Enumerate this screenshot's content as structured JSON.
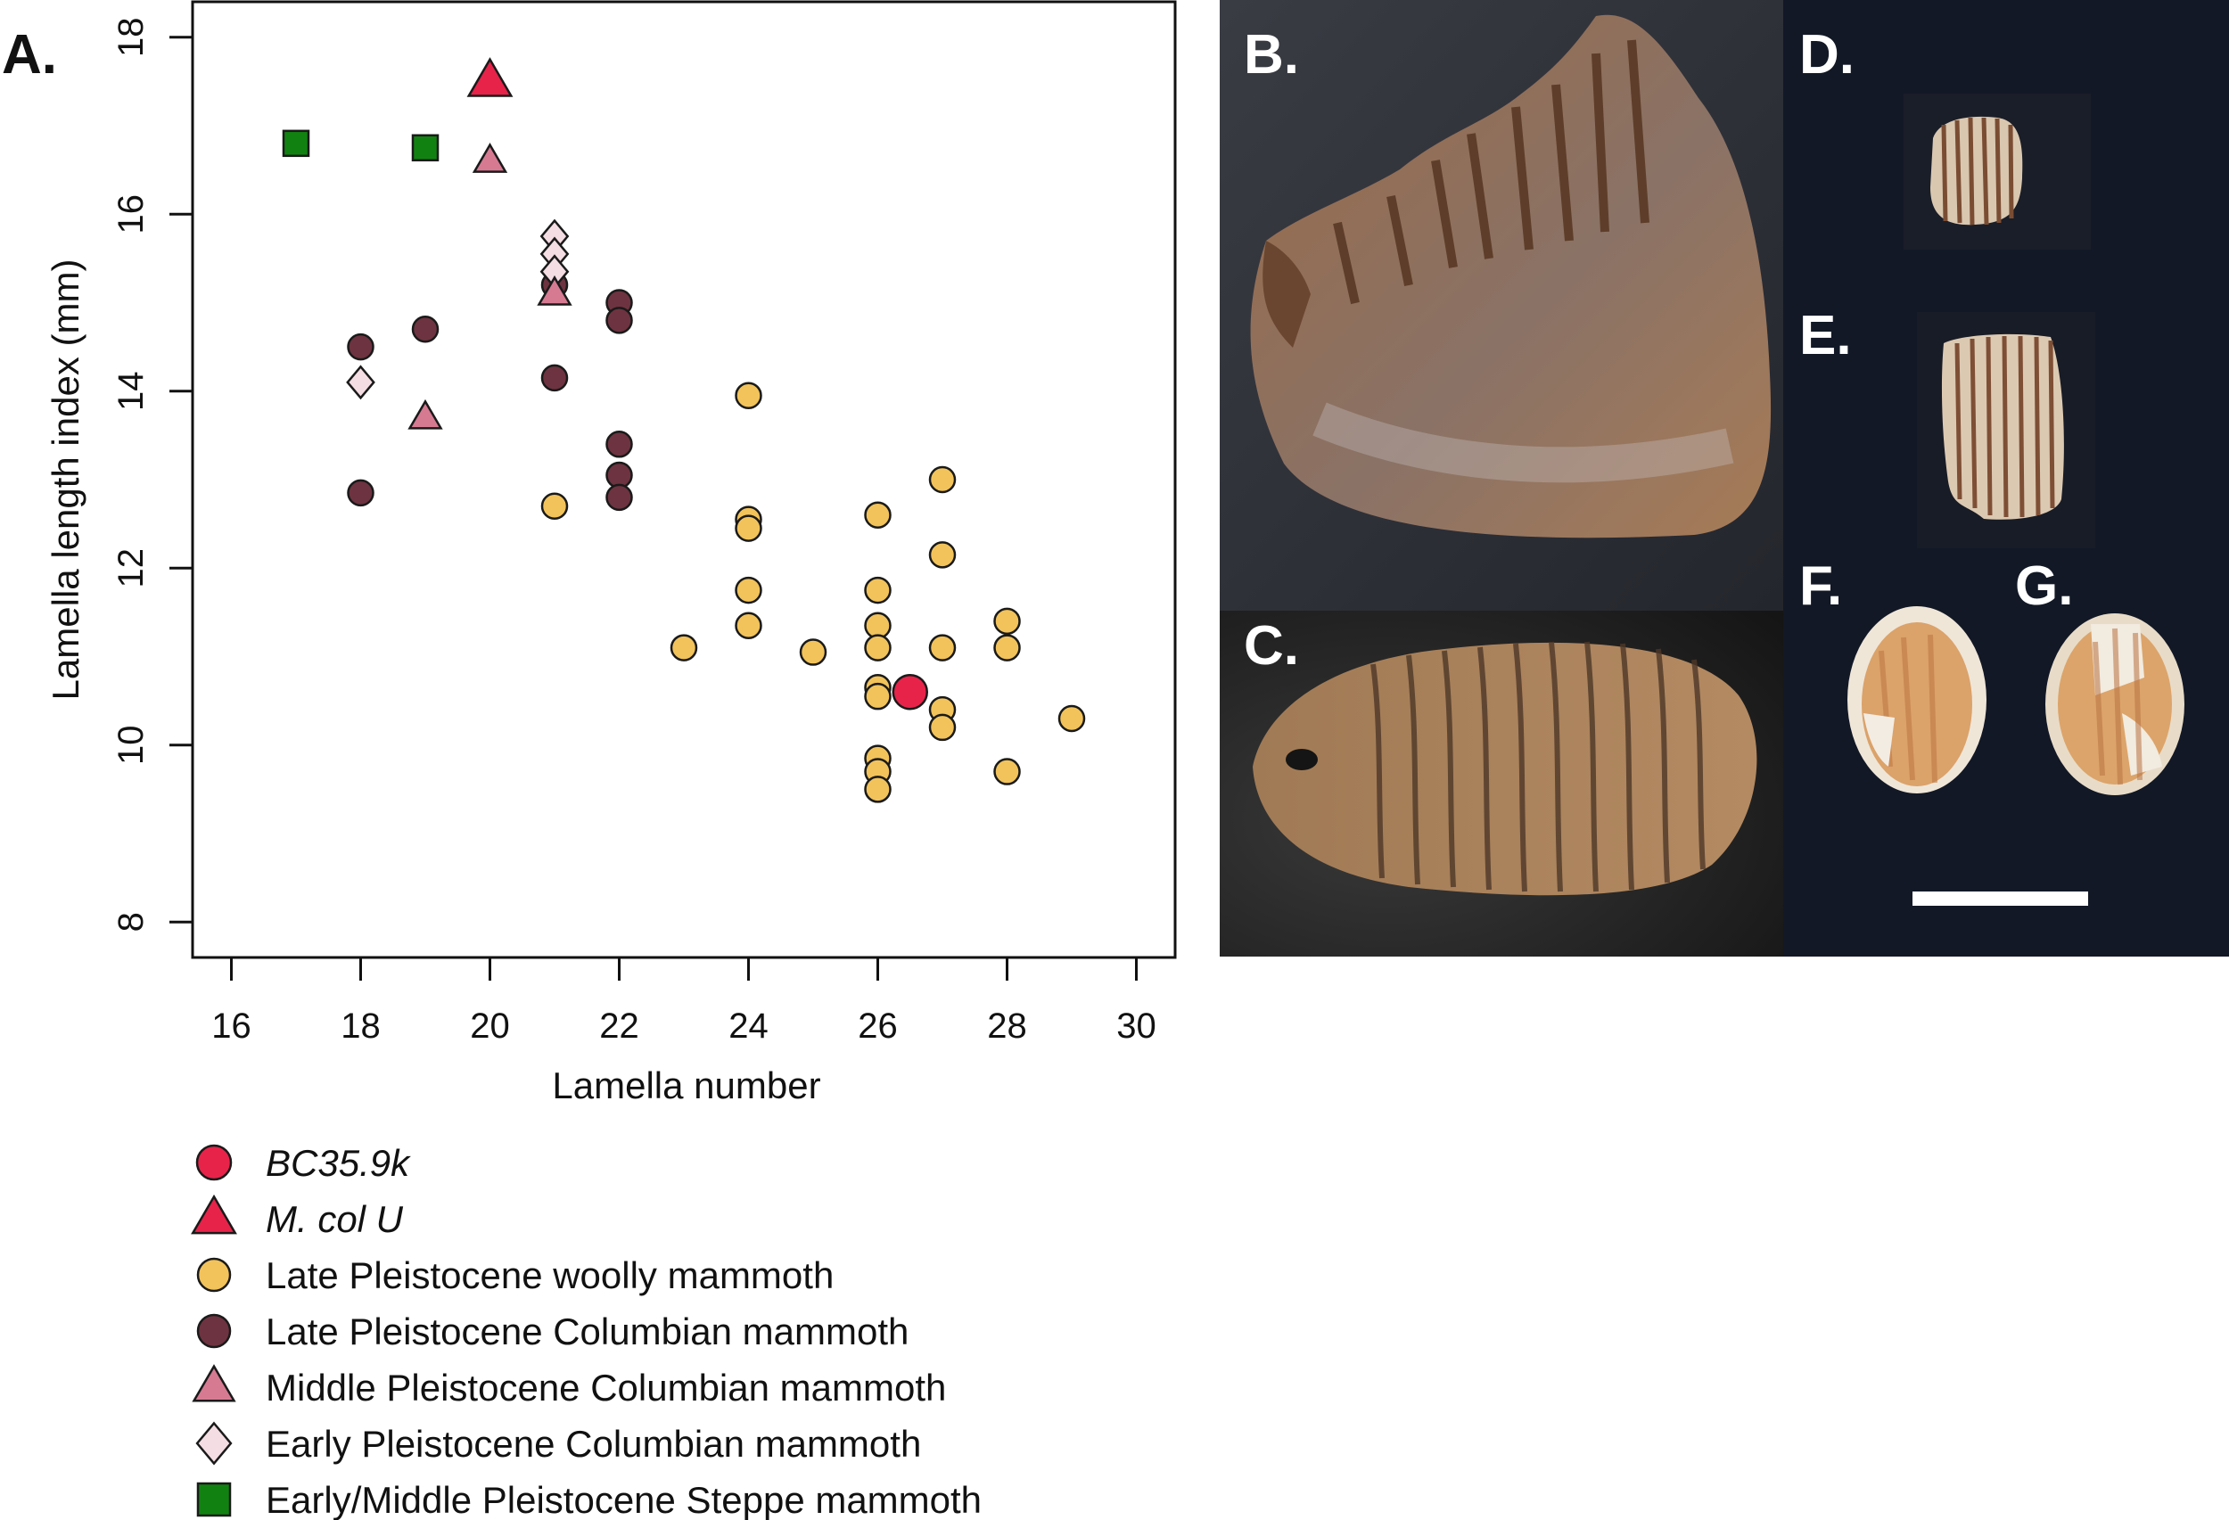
{
  "chart_data": {
    "type": "scatter",
    "panel_label": "A.",
    "xlabel": "Lamella number",
    "ylabel": "Lamella length index (mm)",
    "xlim": [
      15.4,
      30.6
    ],
    "ylim": [
      7.6,
      18.4
    ],
    "xticks": [
      16,
      18,
      20,
      22,
      24,
      26,
      28,
      30
    ],
    "yticks": [
      8,
      10,
      12,
      14,
      16,
      18
    ],
    "grid": false,
    "legend_position": "below",
    "series": [
      {
        "name": "BC35.9k",
        "italic": true,
        "marker": "circle",
        "size": "large",
        "color": "#e8234a",
        "points": [
          [
            26.5,
            10.6
          ]
        ]
      },
      {
        "name": "M. col U",
        "italic": true,
        "marker": "triangle",
        "size": "large",
        "color": "#e8234a",
        "points": [
          [
            20,
            17.5
          ]
        ]
      },
      {
        "name": "Late Pleistocene woolly mammoth",
        "marker": "circle",
        "color": "#f2c35a",
        "points": [
          [
            21,
            12.7
          ],
          [
            23,
            11.1
          ],
          [
            24,
            13.95
          ],
          [
            24,
            12.55
          ],
          [
            24,
            12.45
          ],
          [
            24,
            11.75
          ],
          [
            24,
            11.35
          ],
          [
            25,
            11.05
          ],
          [
            26,
            12.6
          ],
          [
            26,
            11.75
          ],
          [
            26,
            11.35
          ],
          [
            26,
            11.1
          ],
          [
            26,
            10.65
          ],
          [
            26,
            10.55
          ],
          [
            26,
            9.85
          ],
          [
            26,
            9.7
          ],
          [
            26,
            9.5
          ],
          [
            27,
            13.0
          ],
          [
            27,
            12.15
          ],
          [
            27,
            11.1
          ],
          [
            27,
            10.4
          ],
          [
            27,
            10.2
          ],
          [
            28,
            11.4
          ],
          [
            28,
            11.1
          ],
          [
            28,
            9.7
          ],
          [
            29,
            10.3
          ]
        ]
      },
      {
        "name": "Late Pleistocene Columbian mammoth",
        "marker": "circle",
        "color": "#6e3340",
        "points": [
          [
            18,
            14.5
          ],
          [
            18,
            12.85
          ],
          [
            19,
            14.7
          ],
          [
            21,
            15.2
          ],
          [
            21,
            14.15
          ],
          [
            22,
            15.0
          ],
          [
            22,
            14.8
          ],
          [
            22,
            13.4
          ],
          [
            22,
            13.05
          ],
          [
            22,
            12.8
          ]
        ]
      },
      {
        "name": "Middle Pleistocene Columbian mammoth",
        "marker": "triangle",
        "color": "#d67a92",
        "points": [
          [
            19,
            13.7
          ],
          [
            20,
            16.6
          ],
          [
            21,
            15.1
          ]
        ]
      },
      {
        "name": "Early Pleistocene Columbian mammoth",
        "marker": "diamond",
        "color": "#f4dde3",
        "points": [
          [
            18,
            14.1
          ],
          [
            21,
            15.75
          ],
          [
            21,
            15.55
          ],
          [
            21,
            15.35
          ]
        ]
      },
      {
        "name": "Early/Middle Pleistocene Steppe mammoth",
        "marker": "square",
        "color": "#118211",
        "points": [
          [
            17,
            16.8
          ],
          [
            19,
            16.75
          ]
        ]
      }
    ]
  },
  "photo_panels": [
    {
      "label": "B.",
      "subject": "mammoth molar side view"
    },
    {
      "label": "C.",
      "subject": "mammoth molar occlusal view"
    },
    {
      "label": "D.",
      "subject": "small molar plate"
    },
    {
      "label": "E.",
      "subject": "small molar plate"
    },
    {
      "label": "F.",
      "subject": "oval tooth section"
    },
    {
      "label": "G.",
      "subject": "oval tooth section"
    }
  ]
}
